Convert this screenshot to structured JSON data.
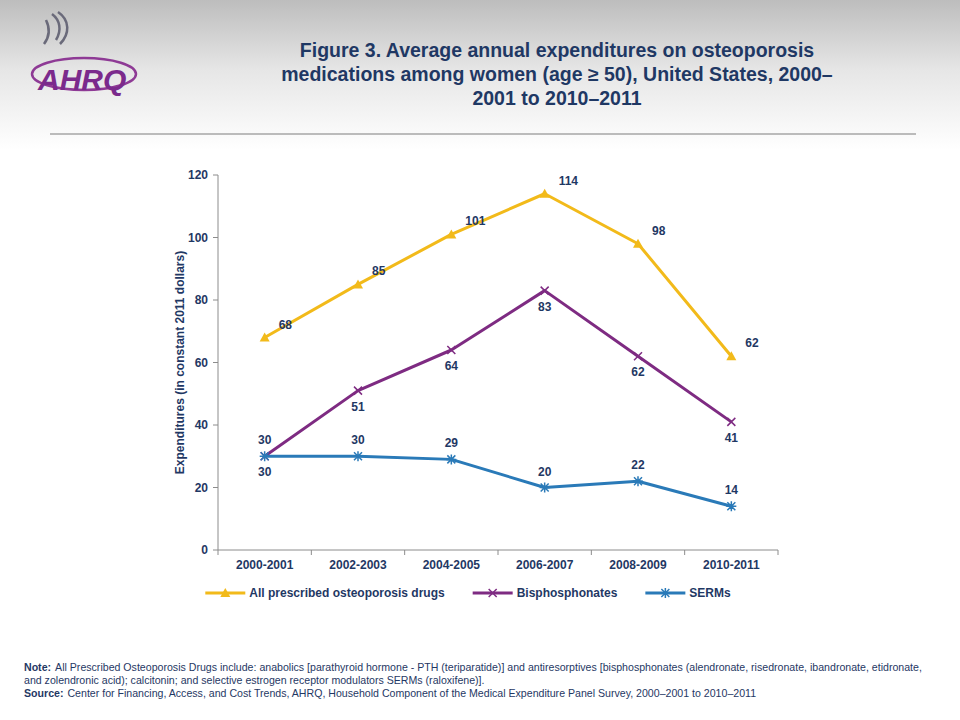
{
  "logo": "AHRQ",
  "chart_data": {
    "type": "line",
    "title": "Figure 3. Average annual expenditures on osteoporosis medications among women (age ≥ 50), United States, 2000–2001 to 2010–2011",
    "y_label": "Expenditures (in constant 2011 dollars)",
    "categories": [
      "2000-2001",
      "2002-2003",
      "2004-2005",
      "2006-2007",
      "2008-2009",
      "2010-2011"
    ],
    "series": [
      {
        "name": "All prescribed osteoporosis drugs",
        "color": "#F2BA1A",
        "marker": "triangle",
        "values": [
          68,
          85,
          101,
          114,
          98,
          62
        ]
      },
      {
        "name": "Bisphosphonates",
        "color": "#7E2B82",
        "marker": "x",
        "values": [
          30,
          51,
          64,
          83,
          62,
          41
        ]
      },
      {
        "name": "SERMs",
        "color": "#2A7AB8",
        "marker": "star",
        "values": [
          30,
          30,
          29,
          20,
          22,
          14
        ]
      }
    ],
    "ylim": [
      0,
      120
    ],
    "yticks": [
      0,
      20,
      40,
      60,
      80,
      100,
      120
    ],
    "grid": false,
    "legend": "bottom",
    "data_labels": true,
    "annotations": [
      {
        "label": "Note:",
        "text": "All Prescribed Osteoporosis Drugs include: anabolics [parathyroid hormone - PTH (teriparatide)] and antiresorptives [bisphosphonates (alendronate, risedronate, ibandronate, etidronate, and zolendronic acid); calcitonin; and selective estrogen receptor modulators SERMs (raloxifene)]."
      },
      {
        "label": "Source:",
        "text": "Center for Financing, Access, and Cost Trends, AHRQ, Household Component of the Medical Expenditure Panel Survey, 2000–2001 to 2010–2011"
      }
    ]
  }
}
